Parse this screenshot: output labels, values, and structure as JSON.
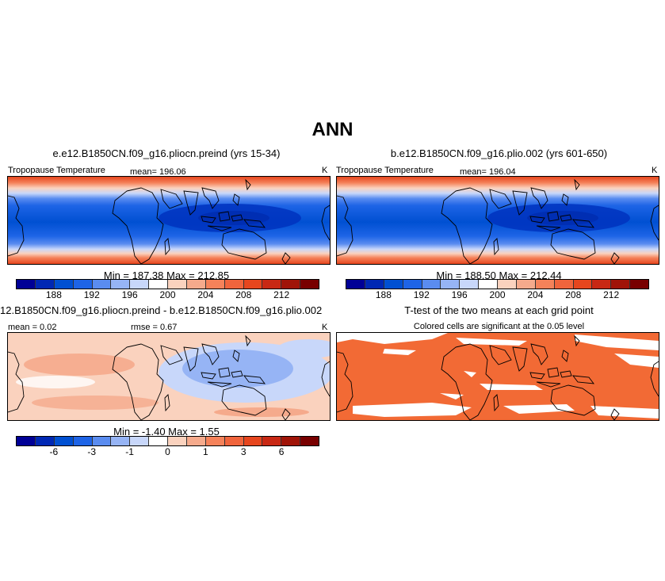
{
  "figure": {
    "title": "ANN"
  },
  "panels": [
    {
      "title": "e.e12.B1850CN.f09_g16.pliocn.preind (yrs 15-34)",
      "var_label": "Tropopause Temperature",
      "mean_label": "mean= 196.06",
      "units": "K",
      "minmax": "Min = 187.38 Max = 212.85"
    },
    {
      "title": "b.e12.B1850CN.f09_g16.plio.002 (yrs 601-650)",
      "var_label": "Tropopause Temperature",
      "mean_label": "mean= 196.04",
      "units": "K",
      "minmax": "Min = 188.50 Max = 212.44"
    },
    {
      "title": "12.B1850CN.f09_g16.pliocn.preind - b.e12.B1850CN.f09_g16.plio.002",
      "mean_label": "mean = 0.02",
      "rmse_label": "rmse = 0.67",
      "units": "K",
      "minmax": "Min = -1.40 Max = 1.55"
    },
    {
      "title": "T-test of the two means at each grid point",
      "subtitle": "Colored cells are significant at the 0.05 level"
    }
  ],
  "colorbars": {
    "abs": {
      "colors": [
        "#000096",
        "#0028b4",
        "#0050d2",
        "#1e64e6",
        "#5a8cf0",
        "#96b4f5",
        "#c8d7fa",
        "#ffffff",
        "#fad2be",
        "#f5aa8c",
        "#f5825a",
        "#f0643c",
        "#e6461e",
        "#c82814",
        "#a01408",
        "#780000"
      ],
      "ticks": [
        "188",
        "192",
        "196",
        "200",
        "204",
        "208",
        "212"
      ],
      "tick_positions": [
        2,
        4,
        6,
        8,
        10,
        12,
        14
      ]
    },
    "diff": {
      "colors": [
        "#000096",
        "#0028b4",
        "#0050d2",
        "#1e64e6",
        "#5a8cf0",
        "#96b4f5",
        "#c8d7fa",
        "#ffffff",
        "#fad2be",
        "#f5aa8c",
        "#f5825a",
        "#f0643c",
        "#e6461e",
        "#c82814",
        "#a01408",
        "#780000"
      ],
      "ticks": [
        "-6",
        "-3",
        "-1",
        "0",
        "1",
        "3",
        "6"
      ],
      "tick_positions": [
        2,
        4,
        6,
        8,
        10,
        12,
        14
      ]
    }
  },
  "ttest": {
    "significant_color": "#f26a35"
  }
}
